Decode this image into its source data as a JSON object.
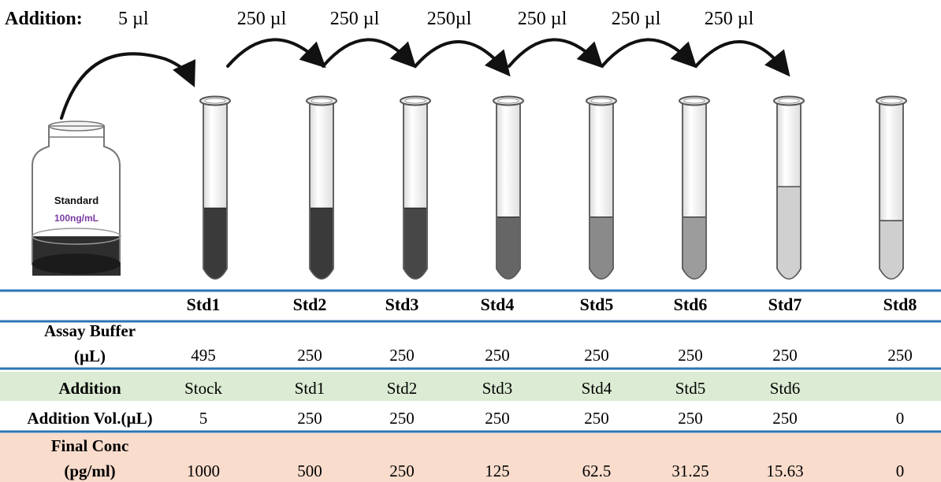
{
  "addition_row": {
    "label": "Addition:",
    "first_amount": "5 µl",
    "transfer_amounts": [
      "250 µl",
      "250 µl",
      "250µl",
      "250 µl",
      "250 µl",
      "250 µl"
    ]
  },
  "bottle": {
    "name": "Standard",
    "concentration": "100ng/mL",
    "concentration_color": "#7a3aa0"
  },
  "tubes": [
    {
      "fill_level": 0.4,
      "liquid_color": "#3a3a3a"
    },
    {
      "fill_level": 0.4,
      "liquid_color": "#3a3a3a"
    },
    {
      "fill_level": 0.4,
      "liquid_color": "#474747"
    },
    {
      "fill_level": 0.35,
      "liquid_color": "#666666"
    },
    {
      "fill_level": 0.35,
      "liquid_color": "#8a8a8a"
    },
    {
      "fill_level": 0.35,
      "liquid_color": "#9c9c9c"
    },
    {
      "fill_level": 0.52,
      "liquid_color": "#d0d0d0"
    },
    {
      "fill_level": 0.33,
      "liquid_color": "#cfcfcf"
    }
  ],
  "table": {
    "headers": [
      "Std1",
      "Std2",
      "Std3",
      "Std4",
      "Std5",
      "Std6",
      "Std7",
      "Std8"
    ],
    "rows": [
      {
        "label_lines": [
          "Assay Buffer",
          "(µL)"
        ],
        "values": [
          "495",
          "250",
          "250",
          "250",
          "250",
          "250",
          "250",
          "250"
        ],
        "background": "#ffffff"
      },
      {
        "label_lines": [
          "Addition"
        ],
        "values": [
          "Stock",
          "Std1",
          "Std2",
          "Std3",
          "Std4",
          "Std5",
          "Std6",
          ""
        ],
        "background": "#dcebd3"
      },
      {
        "label_lines": [
          "Addition Vol.(µL)"
        ],
        "values": [
          "5",
          "250",
          "250",
          "250",
          "250",
          "250",
          "250",
          "0"
        ],
        "background": "#ffffff"
      },
      {
        "label_lines": [
          "Final Conc",
          "(pg/ml)"
        ],
        "values": [
          "1000",
          "500",
          "250",
          "125",
          "62.5",
          "31.25",
          "15.63",
          "0"
        ],
        "background": "#f9dccc"
      }
    ],
    "separator_color": "#2e74b5"
  }
}
